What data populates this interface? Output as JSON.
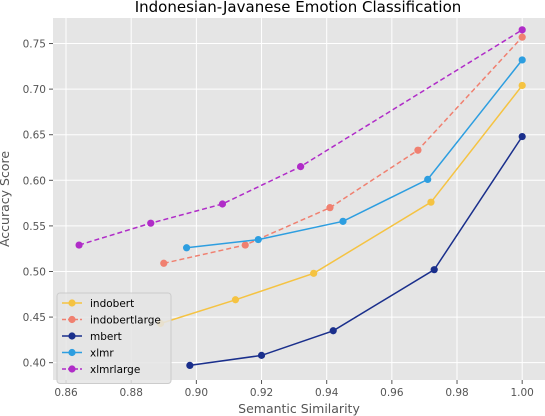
{
  "chart_data": {
    "type": "line",
    "title": "Indonesian-Javanese Emotion Classification",
    "xlabel": "Semantic Similarity",
    "ylabel": "Accuracy Score",
    "xlim": [
      0.856,
      1.007
    ],
    "ylim": [
      0.381,
      0.778
    ],
    "xticks": [
      "0.86",
      "0.88",
      "0.90",
      "0.92",
      "0.94",
      "0.96",
      "0.98",
      "1.00"
    ],
    "yticks": [
      "0.40",
      "0.45",
      "0.50",
      "0.55",
      "0.60",
      "0.65",
      "0.70",
      "0.75"
    ],
    "grid": true,
    "legend_position": "bottom-left",
    "series": [
      {
        "name": "indobert",
        "color": "#f5c342",
        "dash": "solid",
        "x": [
          0.889,
          0.912,
          0.936,
          0.972,
          1.0
        ],
        "y": [
          0.443,
          0.469,
          0.498,
          0.576,
          0.704
        ]
      },
      {
        "name": "indobertlarge",
        "color": "#f08070",
        "dash": "dashed",
        "x": [
          0.89,
          0.915,
          0.941,
          0.968,
          1.0
        ],
        "y": [
          0.509,
          0.529,
          0.57,
          0.633,
          0.757
        ]
      },
      {
        "name": "mbert",
        "color": "#1a2f8c",
        "dash": "solid",
        "x": [
          0.898,
          0.92,
          0.942,
          0.973,
          1.0
        ],
        "y": [
          0.397,
          0.408,
          0.435,
          0.502,
          0.648
        ]
      },
      {
        "name": "xlmr",
        "color": "#2d9ee0",
        "dash": "solid",
        "x": [
          0.897,
          0.919,
          0.945,
          0.971,
          1.0
        ],
        "y": [
          0.526,
          0.535,
          0.555,
          0.601,
          0.732
        ]
      },
      {
        "name": "xlmrlarge",
        "color": "#b02cc8",
        "dash": "dashed",
        "x": [
          0.864,
          0.886,
          0.908,
          0.932,
          1.0
        ],
        "y": [
          0.529,
          0.553,
          0.574,
          0.615,
          0.765
        ]
      }
    ]
  }
}
